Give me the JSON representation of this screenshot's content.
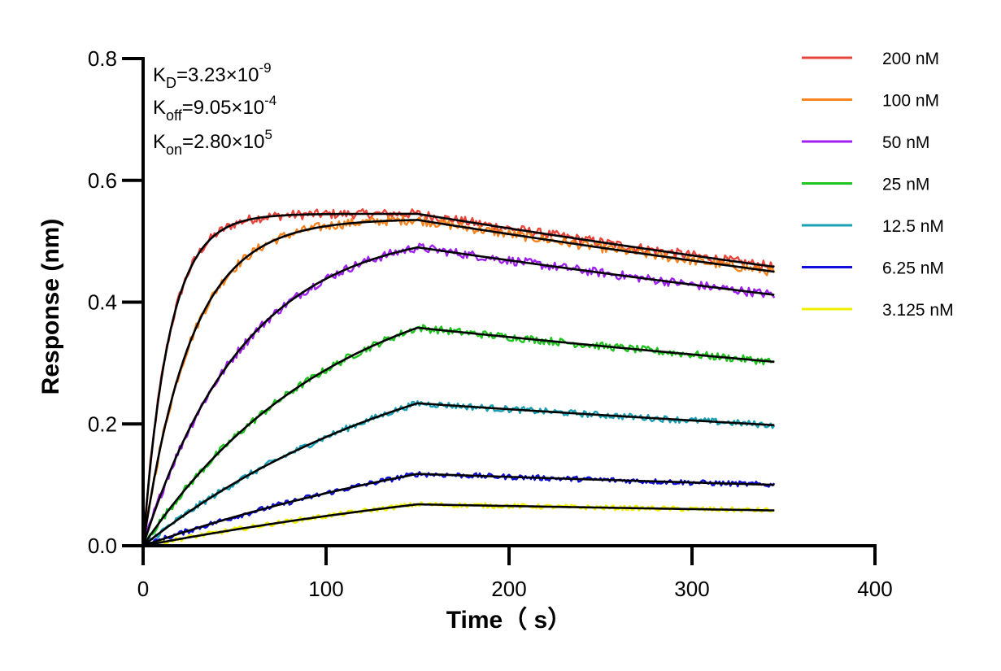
{
  "chart_data": {
    "type": "line",
    "title": "",
    "xlabel": "Time（ s）",
    "ylabel": "Response (nm)",
    "xlim": [
      0,
      400
    ],
    "ylim": [
      0,
      0.8
    ],
    "x_ticks": [
      "0",
      "100",
      "200",
      "300",
      "400"
    ],
    "y_ticks": [
      "0.0",
      "0.2",
      "0.4",
      "0.6",
      "0.8"
    ],
    "grid": false,
    "legend_position": "top-right",
    "association_end_s": 150,
    "end_time_s": 345,
    "annotations": {
      "kd": {
        "symbol": "K",
        "sub": "D",
        "mantissa": "=3.23×10",
        "exp": "-9"
      },
      "koff": {
        "symbol": "K",
        "sub": "off",
        "mantissa": "=9.05×10",
        "exp": "-4"
      },
      "kon": {
        "symbol": "K",
        "sub": "on",
        "mantissa": "=2.80×10",
        "exp": "5"
      }
    },
    "fit_color": "#000000",
    "series": [
      {
        "name": "200 nM",
        "color": "#e8453c",
        "peak": 0.545,
        "end": 0.458
      },
      {
        "name": "100 nM",
        "color": "#f5841f",
        "peak": 0.535,
        "end": 0.45
      },
      {
        "name": "50 nM",
        "color": "#a020f0",
        "peak": 0.49,
        "end": 0.412
      },
      {
        "name": "25 nM",
        "color": "#1fc41f",
        "peak": 0.358,
        "end": 0.302
      },
      {
        "name": "12.5 nM",
        "color": "#1aa0b4",
        "peak": 0.234,
        "end": 0.198
      },
      {
        "name": "6.25 nM",
        "color": "#1010d8",
        "peak": 0.118,
        "end": 0.1
      },
      {
        "name": "3.125 nM",
        "color": "#f0f000",
        "peak": 0.068,
        "end": 0.058
      }
    ]
  }
}
